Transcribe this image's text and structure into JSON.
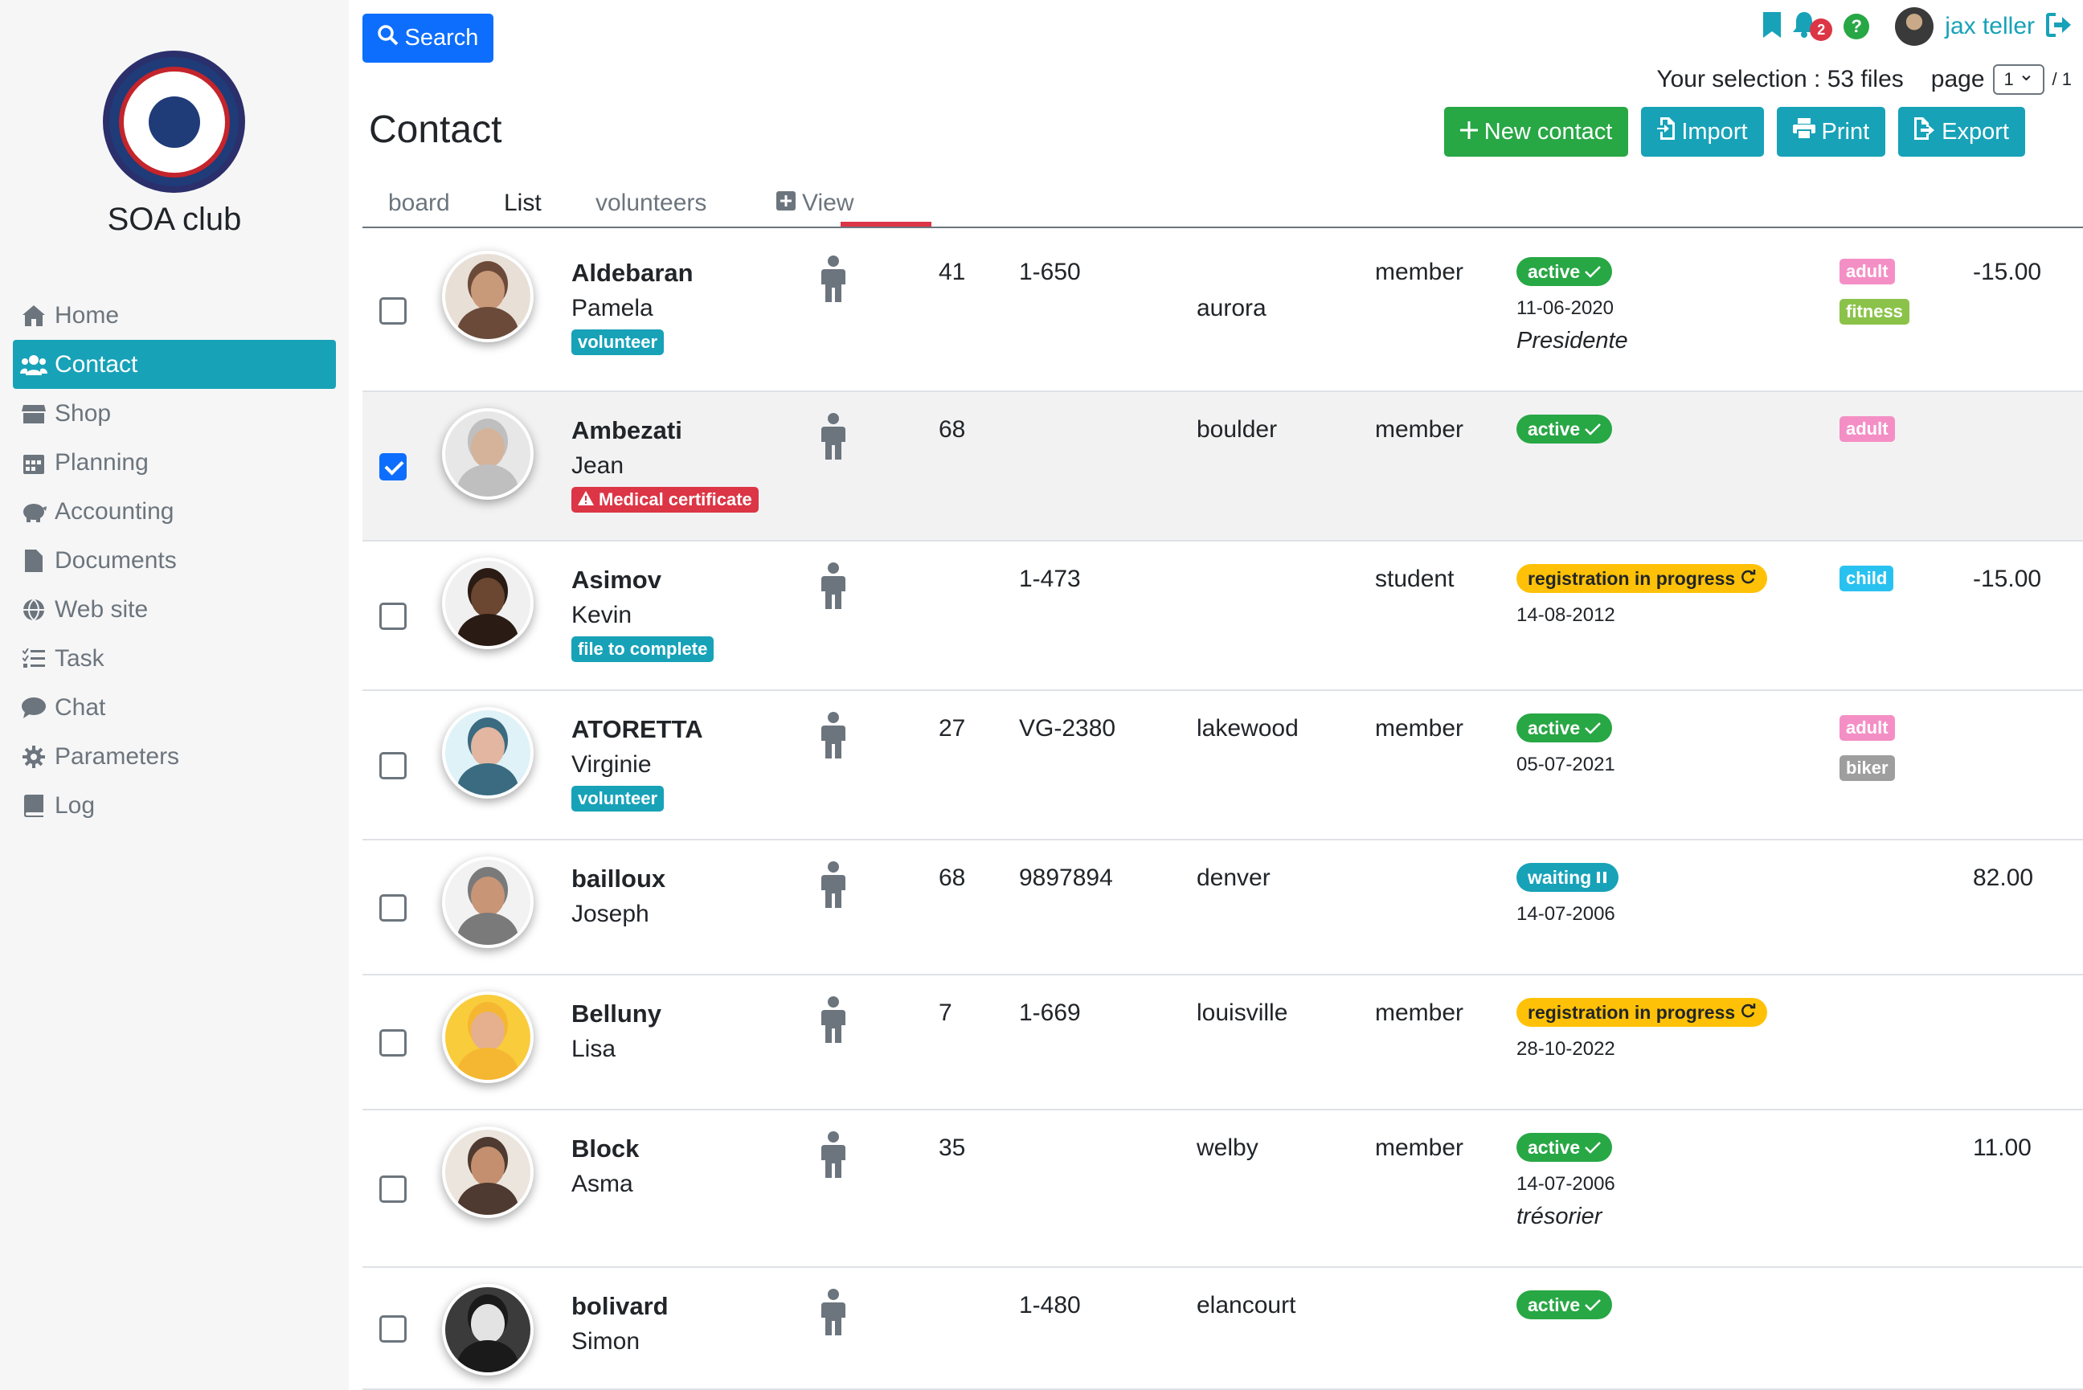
{
  "sidebar": {
    "club_name": "SOA club",
    "menu": [
      {
        "label": "Home",
        "icon": "home-icon"
      },
      {
        "label": "Contact",
        "icon": "users-icon",
        "active": true
      },
      {
        "label": "Shop",
        "icon": "store-icon"
      },
      {
        "label": "Planning",
        "icon": "calendar-icon"
      },
      {
        "label": "Accounting",
        "icon": "piggy-bank-icon"
      },
      {
        "label": "Documents",
        "icon": "file-icon"
      },
      {
        "label": "Web site",
        "icon": "globe-icon"
      },
      {
        "label": "Task",
        "icon": "tasks-icon"
      },
      {
        "label": "Chat",
        "icon": "comment-icon"
      },
      {
        "label": "Parameters",
        "icon": "gear-icon"
      },
      {
        "label": "Log",
        "icon": "book-icon"
      }
    ]
  },
  "topbar": {
    "search_label": "Search",
    "notification_count": "2",
    "help_label": "?",
    "user_name": "jax teller"
  },
  "selection": {
    "text": "Your selection : 53 files",
    "page_label": "page",
    "page_value": "1",
    "page_total": "/ 1"
  },
  "title": "Contact",
  "actions": {
    "new_contact": "New contact",
    "import": "Import",
    "print": "Print",
    "export": "Export"
  },
  "tabs": {
    "board": "board",
    "list": "List",
    "volunteers": "volunteers",
    "view": "View"
  },
  "colors": {
    "primary": "#0d6efd",
    "teal": "#17a2b8",
    "green": "#28a745",
    "red": "#dc3545",
    "yellow": "#ffc107"
  },
  "contacts": [
    {
      "last_name": "Aldebaran",
      "first_name": "Pamela",
      "tag": "volunteer",
      "age": "41",
      "ref": "1-650",
      "city": "aurora",
      "type": "member",
      "status": "active",
      "date": "11-06-2020",
      "role": "Presidente",
      "categories": [
        "adult",
        "fitness"
      ],
      "amount": "-15.00",
      "checked": false
    },
    {
      "last_name": "Ambezati",
      "first_name": "Jean",
      "tag": "Medical certificate",
      "age": "68",
      "ref": "",
      "city": "boulder",
      "type": "member",
      "status": "active",
      "date": "",
      "role": "",
      "categories": [
        "adult"
      ],
      "amount": "",
      "checked": true
    },
    {
      "last_name": "Asimov",
      "first_name": "Kevin",
      "tag": "file to complete",
      "age": "",
      "ref": "1-473",
      "city": "",
      "type": "student",
      "status": "registration in progress",
      "date": "14-08-2012",
      "role": "",
      "categories": [
        "child"
      ],
      "amount": "-15.00",
      "checked": false
    },
    {
      "last_name": "ATORETTA",
      "first_name": "Virginie",
      "tag": "volunteer",
      "age": "27",
      "ref": "VG-2380",
      "city": "lakewood",
      "type": "member",
      "status": "active",
      "date": "05-07-2021",
      "role": "",
      "categories": [
        "adult",
        "biker"
      ],
      "amount": "",
      "checked": false
    },
    {
      "last_name": "bailloux",
      "first_name": "Joseph",
      "tag": "",
      "age": "68",
      "ref": "9897894",
      "city": "denver",
      "type": "",
      "status": "waiting",
      "date": "14-07-2006",
      "role": "",
      "categories": [],
      "amount": "82.00",
      "checked": false
    },
    {
      "last_name": "Belluny",
      "first_name": "Lisa",
      "tag": "",
      "age": "7",
      "ref": "1-669",
      "city": "louisville",
      "type": "member",
      "status": "registration in progress",
      "date": "28-10-2022",
      "role": "",
      "categories": [],
      "amount": "",
      "checked": false
    },
    {
      "last_name": "Block",
      "first_name": "Asma",
      "tag": "",
      "age": "35",
      "ref": "",
      "city": "welby",
      "type": "member",
      "status": "active",
      "date": "14-07-2006",
      "role": "trésorier",
      "categories": [],
      "amount": "11.00",
      "checked": false
    },
    {
      "last_name": "bolivard",
      "first_name": "Simon",
      "tag": "",
      "age": "",
      "ref": "1-480",
      "city": "elancourt",
      "type": "",
      "status": "active",
      "date": "",
      "role": "",
      "categories": [],
      "amount": "",
      "checked": false
    }
  ]
}
